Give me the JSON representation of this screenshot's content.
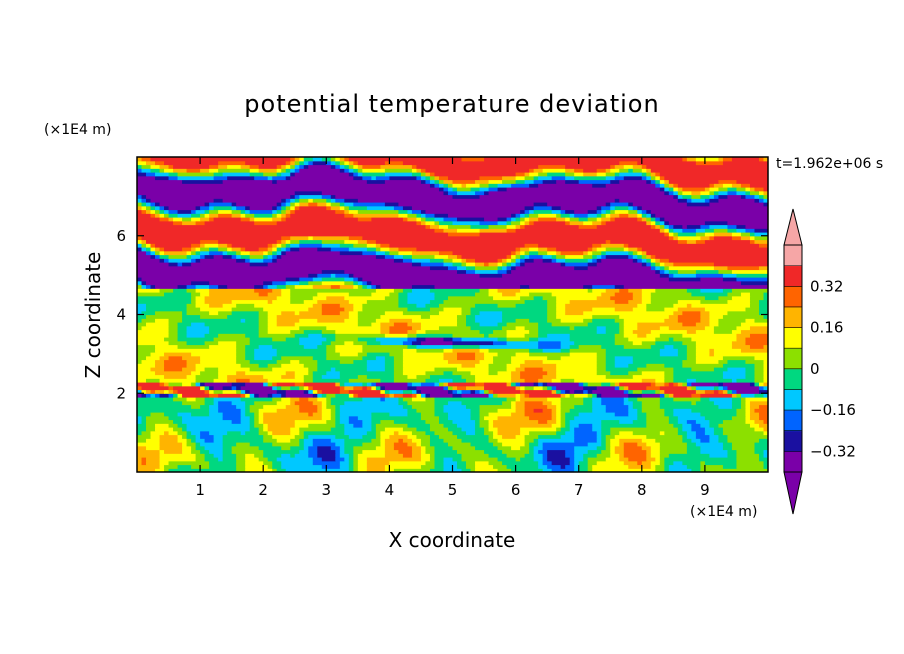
{
  "chart_data": {
    "type": "heatmap",
    "title": "potential temperature deviation",
    "time_label": "t=1.962e+06 s",
    "xlabel": "X coordinate",
    "ylabel": "Z coordinate",
    "x_unit": "(×1E4 m)",
    "y_unit": "(×1E4 m)",
    "xlim": [
      0,
      10
    ],
    "ylim": [
      0,
      8
    ],
    "x_ticks": [
      "1",
      "2",
      "3",
      "4",
      "5",
      "6",
      "7",
      "8",
      "9"
    ],
    "y_ticks": [
      "2",
      "4",
      "6"
    ],
    "colorbar": {
      "levels": [
        -0.4,
        -0.32,
        -0.24,
        -0.16,
        -0.08,
        0,
        0.08,
        0.16,
        0.24,
        0.32,
        0.4
      ],
      "labels": [
        "0.32",
        "0.16",
        "0",
        "-0.16",
        "-0.32"
      ],
      "colors": [
        "#7a00a8",
        "#1a10a0",
        "#0064ff",
        "#00c8ff",
        "#00d880",
        "#8ce000",
        "#ffff00",
        "#ffb400",
        "#ff6400",
        "#f02828",
        "#f6a6a6"
      ],
      "over_color": "#f6a6a6",
      "under_color": "#7a00a8"
    }
  }
}
